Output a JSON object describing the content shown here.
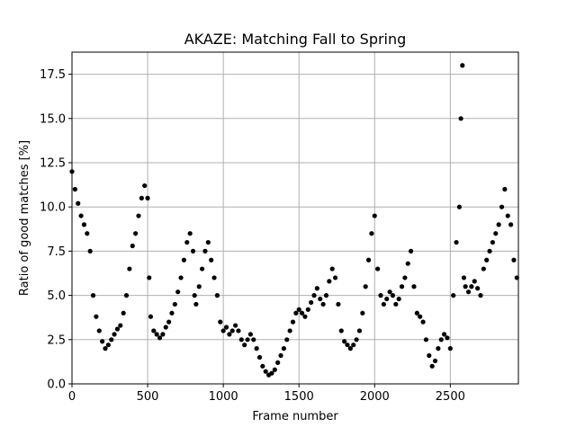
{
  "chart_data": {
    "type": "scatter",
    "title": "AKAZE: Matching Fall to Spring",
    "xlabel": "Frame number",
    "ylabel": "Ratio of good matches [%]",
    "xlim": [
      0,
      2950
    ],
    "ylim": [
      0,
      18.75
    ],
    "x_ticks": [
      "0",
      "500",
      "1000",
      "1500",
      "2000",
      "2500"
    ],
    "x_tick_values": [
      0,
      500,
      1000,
      1500,
      2000,
      2500
    ],
    "y_ticks": [
      "0.0",
      "2.5",
      "5.0",
      "7.5",
      "10.0",
      "12.5",
      "15.0",
      "17.5"
    ],
    "y_tick_values": [
      0,
      2.5,
      5,
      7.5,
      10,
      12.5,
      15,
      17.5
    ],
    "grid": true,
    "marker_color": "#000000",
    "series": [
      {
        "points": [
          [
            0,
            12.0
          ],
          [
            20,
            11.0
          ],
          [
            40,
            10.2
          ],
          [
            60,
            9.5
          ],
          [
            80,
            9.0
          ],
          [
            100,
            8.5
          ],
          [
            120,
            7.5
          ],
          [
            140,
            5.0
          ],
          [
            160,
            3.8
          ],
          [
            180,
            3.0
          ],
          [
            200,
            2.4
          ],
          [
            220,
            2.0
          ],
          [
            240,
            2.2
          ],
          [
            260,
            2.5
          ],
          [
            280,
            2.8
          ],
          [
            300,
            3.1
          ],
          [
            320,
            3.3
          ],
          [
            340,
            4.0
          ],
          [
            360,
            5.0
          ],
          [
            380,
            6.5
          ],
          [
            400,
            7.8
          ],
          [
            420,
            8.5
          ],
          [
            440,
            9.5
          ],
          [
            460,
            10.5
          ],
          [
            480,
            11.2
          ],
          [
            500,
            10.5
          ],
          [
            510,
            6.0
          ],
          [
            520,
            3.8
          ],
          [
            540,
            3.0
          ],
          [
            560,
            2.8
          ],
          [
            580,
            2.6
          ],
          [
            600,
            2.8
          ],
          [
            620,
            3.2
          ],
          [
            640,
            3.5
          ],
          [
            660,
            4.0
          ],
          [
            680,
            4.5
          ],
          [
            700,
            5.2
          ],
          [
            720,
            6.0
          ],
          [
            740,
            7.0
          ],
          [
            760,
            8.0
          ],
          [
            780,
            8.5
          ],
          [
            800,
            7.5
          ],
          [
            810,
            5.0
          ],
          [
            820,
            4.5
          ],
          [
            840,
            5.5
          ],
          [
            860,
            6.5
          ],
          [
            880,
            7.5
          ],
          [
            900,
            8.0
          ],
          [
            920,
            7.0
          ],
          [
            940,
            6.0
          ],
          [
            960,
            5.0
          ],
          [
            980,
            3.5
          ],
          [
            1000,
            3.0
          ],
          [
            1020,
            3.2
          ],
          [
            1040,
            2.8
          ],
          [
            1060,
            3.0
          ],
          [
            1080,
            3.3
          ],
          [
            1100,
            3.0
          ],
          [
            1120,
            2.5
          ],
          [
            1140,
            2.2
          ],
          [
            1160,
            2.5
          ],
          [
            1180,
            2.8
          ],
          [
            1200,
            2.5
          ],
          [
            1220,
            2.0
          ],
          [
            1240,
            1.5
          ],
          [
            1260,
            1.0
          ],
          [
            1280,
            0.7
          ],
          [
            1300,
            0.5
          ],
          [
            1320,
            0.6
          ],
          [
            1340,
            0.8
          ],
          [
            1360,
            1.2
          ],
          [
            1380,
            1.6
          ],
          [
            1400,
            2.0
          ],
          [
            1420,
            2.5
          ],
          [
            1440,
            3.0
          ],
          [
            1460,
            3.5
          ],
          [
            1480,
            4.0
          ],
          [
            1500,
            4.2
          ],
          [
            1520,
            4.0
          ],
          [
            1540,
            3.8
          ],
          [
            1560,
            4.2
          ],
          [
            1580,
            4.6
          ],
          [
            1600,
            5.0
          ],
          [
            1620,
            5.4
          ],
          [
            1640,
            4.8
          ],
          [
            1660,
            4.5
          ],
          [
            1680,
            5.0
          ],
          [
            1700,
            5.8
          ],
          [
            1720,
            6.5
          ],
          [
            1740,
            6.0
          ],
          [
            1760,
            4.5
          ],
          [
            1780,
            3.0
          ],
          [
            1800,
            2.4
          ],
          [
            1820,
            2.2
          ],
          [
            1840,
            2.0
          ],
          [
            1860,
            2.2
          ],
          [
            1880,
            2.5
          ],
          [
            1900,
            3.0
          ],
          [
            1920,
            4.0
          ],
          [
            1940,
            5.5
          ],
          [
            1960,
            7.0
          ],
          [
            1980,
            8.5
          ],
          [
            2000,
            9.5
          ],
          [
            2020,
            6.5
          ],
          [
            2040,
            5.0
          ],
          [
            2060,
            4.5
          ],
          [
            2080,
            4.8
          ],
          [
            2100,
            5.2
          ],
          [
            2120,
            5.0
          ],
          [
            2140,
            4.5
          ],
          [
            2160,
            4.8
          ],
          [
            2180,
            5.5
          ],
          [
            2200,
            6.0
          ],
          [
            2220,
            6.8
          ],
          [
            2240,
            7.5
          ],
          [
            2260,
            5.5
          ],
          [
            2280,
            4.0
          ],
          [
            2300,
            3.8
          ],
          [
            2320,
            3.5
          ],
          [
            2340,
            2.5
          ],
          [
            2360,
            1.6
          ],
          [
            2380,
            1.0
          ],
          [
            2400,
            1.3
          ],
          [
            2420,
            2.0
          ],
          [
            2440,
            2.5
          ],
          [
            2460,
            2.8
          ],
          [
            2480,
            2.6
          ],
          [
            2500,
            2.0
          ],
          [
            2520,
            5.0
          ],
          [
            2540,
            8.0
          ],
          [
            2560,
            10.0
          ],
          [
            2570,
            15.0
          ],
          [
            2580,
            18.0
          ],
          [
            2590,
            6.0
          ],
          [
            2600,
            5.5
          ],
          [
            2620,
            5.2
          ],
          [
            2640,
            5.5
          ],
          [
            2660,
            5.8
          ],
          [
            2680,
            5.4
          ],
          [
            2700,
            5.0
          ],
          [
            2720,
            6.5
          ],
          [
            2740,
            7.0
          ],
          [
            2760,
            7.5
          ],
          [
            2780,
            8.0
          ],
          [
            2800,
            8.5
          ],
          [
            2820,
            9.0
          ],
          [
            2840,
            10.0
          ],
          [
            2860,
            11.0
          ],
          [
            2880,
            9.5
          ],
          [
            2900,
            9.0
          ],
          [
            2920,
            7.0
          ],
          [
            2940,
            6.0
          ]
        ]
      }
    ]
  }
}
